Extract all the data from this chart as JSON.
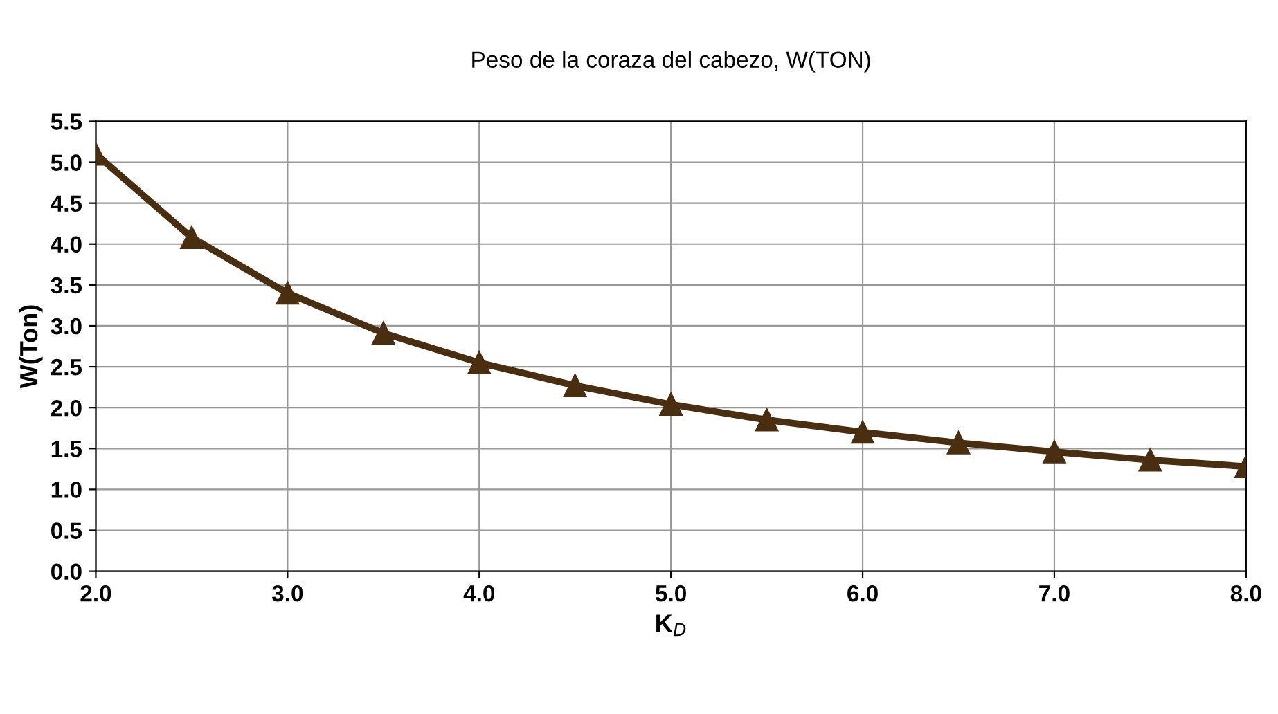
{
  "chart_data": {
    "type": "line",
    "title": "Peso de la coraza del cabezo, W(TON)",
    "xlabel": "K$_{D}$",
    "ylabel": "W(Ton)",
    "x": [
      2.0,
      2.5,
      3.0,
      3.5,
      4.0,
      4.5,
      5.0,
      5.5,
      6.0,
      6.5,
      7.0,
      7.5,
      8.0
    ],
    "series": [
      {
        "color": "#4a2e10",
        "values": [
          5.1,
          4.08,
          3.4,
          2.91,
          2.55,
          2.27,
          2.04,
          1.85,
          1.7,
          1.57,
          1.46,
          1.36,
          1.28
        ]
      }
    ],
    "xlim": [
      2.0,
      8.0
    ],
    "xticks": [
      {
        "value": 2,
        "label": "2.0"
      },
      {
        "value": 3,
        "label": "3.0"
      },
      {
        "value": 4,
        "label": "4.0"
      },
      {
        "value": 5,
        "label": "5.0"
      },
      {
        "value": 6,
        "label": "6.0"
      },
      {
        "value": 7,
        "label": "7.0"
      },
      {
        "value": 8,
        "label": "8.0"
      }
    ],
    "ylim": [
      0.0,
      5.5
    ],
    "yticks": [
      {
        "value": 0,
        "label": "0.0"
      },
      {
        "value": 0.5,
        "label": "0.5"
      },
      {
        "value": 1,
        "label": "1.0"
      },
      {
        "value": 1.5,
        "label": "1.5"
      },
      {
        "value": 2,
        "label": "2.0"
      },
      {
        "value": 2.5,
        "label": "2.5"
      },
      {
        "value": 3,
        "label": "3.0"
      },
      {
        "value": 3.5,
        "label": "3.5"
      },
      {
        "value": 4,
        "label": "4.0"
      },
      {
        "value": 4.5,
        "label": "4.5"
      },
      {
        "value": 5,
        "label": "5.0"
      },
      {
        "value": 5.5,
        "label": "5.5"
      }
    ],
    "grid": true,
    "marker": "triangle",
    "line_style": "solid"
  }
}
